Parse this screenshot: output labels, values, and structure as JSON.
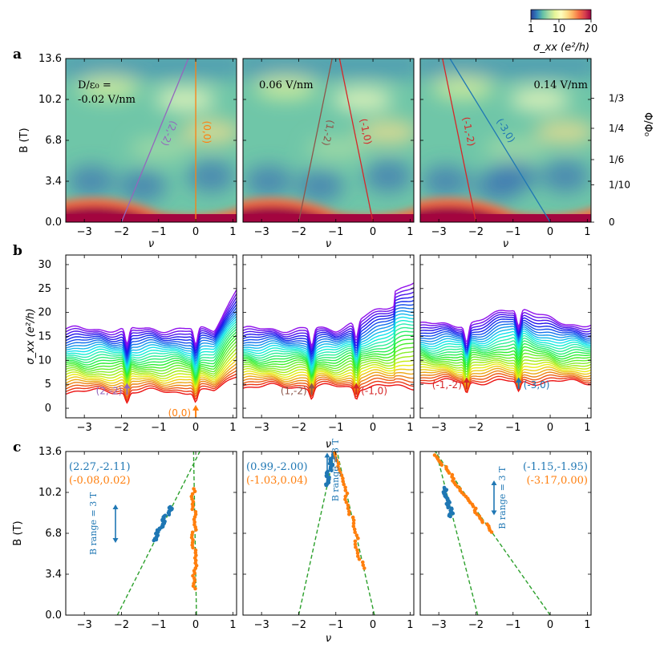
{
  "colorbar": {
    "tick_labels": [
      "1",
      "10",
      "20"
    ],
    "label": "σ_xx (e²/h)",
    "colors": [
      "#2a3c98",
      "#3383bc",
      "#66c2a5",
      "#abdda4",
      "#e6f598",
      "#fefebd",
      "#fee08b",
      "#fdae61",
      "#f46d43",
      "#d53e4f",
      "#9e0142"
    ]
  },
  "row_labels": {
    "a": "a",
    "b": "b",
    "c": "c"
  },
  "shared": {
    "nu_ticks": [
      "−3",
      "−2",
      "−1",
      "0",
      "1"
    ],
    "nu_label": "ν",
    "b_ticks": [
      "0.0",
      "3.4",
      "6.8",
      "10.2",
      "13.6"
    ],
    "b_label": "B (T)",
    "phi_ticks": [
      "0",
      "1/10",
      "1/6",
      "1/4",
      "1/3"
    ],
    "phi_label": "Φ/Φ₀",
    "sigma_ticks": [
      "0",
      "5",
      "10",
      "15",
      "20",
      "25",
      "30"
    ],
    "sigma_label": "σ_xx (e²/h)"
  },
  "chart_data": [
    {
      "type": "heatmap",
      "panel": "a-left",
      "xlim": [
        -3.5,
        1.1
      ],
      "ylim": [
        0,
        13.6
      ],
      "annotation": "D/ε₀ = -0.02 V/nm",
      "lines": [
        {
          "label": "(2,-2)",
          "color": "#9467bd",
          "nu0": -2,
          "slope": 0.5
        },
        {
          "label": "(0,0)",
          "color": "#ff7f0e",
          "nu0": 0,
          "slope": 0
        }
      ]
    },
    {
      "type": "heatmap",
      "panel": "a-middle",
      "xlim": [
        -3.5,
        1.1
      ],
      "ylim": [
        0,
        13.6
      ],
      "annotation": "0.06 V/nm",
      "lines": [
        {
          "label": "(1,-2)",
          "color": "#8c564b",
          "nu0": -2,
          "slope": 0.25
        },
        {
          "label": "(-1,0)",
          "color": "#d62728",
          "nu0": 0,
          "slope": -0.25
        }
      ]
    },
    {
      "type": "heatmap",
      "panel": "a-right",
      "xlim": [
        -3.5,
        1.1
      ],
      "ylim": [
        0,
        13.6
      ],
      "annotation": "0.14 V/nm",
      "lines": [
        {
          "label": "(-1,-2)",
          "color": "#d62728",
          "nu0": -2,
          "slope": -0.25
        },
        {
          "label": "(-3,0)",
          "color": "#1f77b4",
          "nu0": 0,
          "slope": -0.75
        }
      ]
    },
    {
      "type": "line",
      "panel": "b-left",
      "xlim": [
        -3.5,
        1.1
      ],
      "ylim": [
        -2,
        32
      ],
      "series_count": 28,
      "base_range": [
        3.5,
        16.5
      ],
      "markers": [
        {
          "label": "(2,-2)",
          "nu": -1.85,
          "color": "#9467bd",
          "side": "left"
        },
        {
          "label": "(0,0)",
          "nu": 0,
          "color": "#ff7f0e",
          "side": "left"
        }
      ]
    },
    {
      "type": "line",
      "panel": "b-middle",
      "xlim": [
        -3.5,
        1.1
      ],
      "ylim": [
        -2,
        32
      ],
      "series_count": 28,
      "base_range": [
        4.5,
        16.5
      ],
      "markers": [
        {
          "label": "(1,-2)",
          "nu": -1.65,
          "color": "#8c564b",
          "side": "left"
        },
        {
          "label": "(-1,0)",
          "nu": -0.45,
          "color": "#d62728",
          "side": "right"
        }
      ]
    },
    {
      "type": "line",
      "panel": "b-right",
      "xlim": [
        -3.5,
        1.1
      ],
      "ylim": [
        -2,
        32
      ],
      "series_count": 28,
      "base_range": [
        5.5,
        17.5
      ],
      "markers": [
        {
          "label": "(-1,-2)",
          "nu": -2.25,
          "color": "#d62728",
          "side": "left"
        },
        {
          "label": "(-3,0)",
          "nu": -0.85,
          "color": "#1f77b4",
          "side": "right"
        }
      ]
    },
    {
      "type": "scatter",
      "panel": "c-left",
      "xlim": [
        -3.5,
        1.1
      ],
      "ylim": [
        0,
        13.6
      ],
      "fit_labels": [
        "(2.27,-2.11)",
        "(-0.08,0.02)"
      ],
      "fit_colors": [
        "#1f77b4",
        "#ff7f0e"
      ],
      "range_label": "B range = 3 T",
      "fits": [
        {
          "s": 2.27,
          "t": -2.11
        },
        {
          "s": -0.08,
          "t": 0.02
        }
      ],
      "series": [
        {
          "color": "#1f77b4",
          "b_range": [
            6.2,
            9.0
          ],
          "fit": 0
        },
        {
          "color": "#ff7f0e",
          "b_range": [
            2.2,
            10.5
          ],
          "fit": 1
        }
      ]
    },
    {
      "type": "scatter",
      "panel": "c-middle",
      "xlim": [
        -3.5,
        1.1
      ],
      "ylim": [
        0,
        13.6
      ],
      "fit_labels": [
        "(0.99,-2.00)",
        "(-1.03,0.04)"
      ],
      "fit_colors": [
        "#1f77b4",
        "#ff7f0e"
      ],
      "range_label": "B range = 3 T",
      "fits": [
        {
          "s": 0.99,
          "t": -2.0
        },
        {
          "s": -1.03,
          "t": 0.04
        }
      ],
      "series": [
        {
          "color": "#1f77b4",
          "b_range": [
            10.8,
            13.6
          ],
          "fit": 0
        },
        {
          "color": "#ff7f0e",
          "b_range": [
            3.9,
            13.6
          ],
          "fit": 1
        }
      ]
    },
    {
      "type": "scatter",
      "panel": "c-right",
      "xlim": [
        -3.5,
        1.1
      ],
      "ylim": [
        0,
        13.6
      ],
      "fit_labels": [
        "(-1.15,-1.95)",
        "(-3.17,0.00)"
      ],
      "fit_colors": [
        "#1f77b4",
        "#ff7f0e"
      ],
      "range_label": "B range = 3 T",
      "fits": [
        {
          "s": -1.15,
          "t": -1.95
        },
        {
          "s": -3.17,
          "t": 0.0
        }
      ],
      "series": [
        {
          "color": "#1f77b4",
          "b_range": [
            8.2,
            10.6
          ],
          "fit": 0
        },
        {
          "color": "#ff7f0e",
          "b_range": [
            6.9,
            13.3
          ],
          "fit": 1
        }
      ]
    }
  ]
}
